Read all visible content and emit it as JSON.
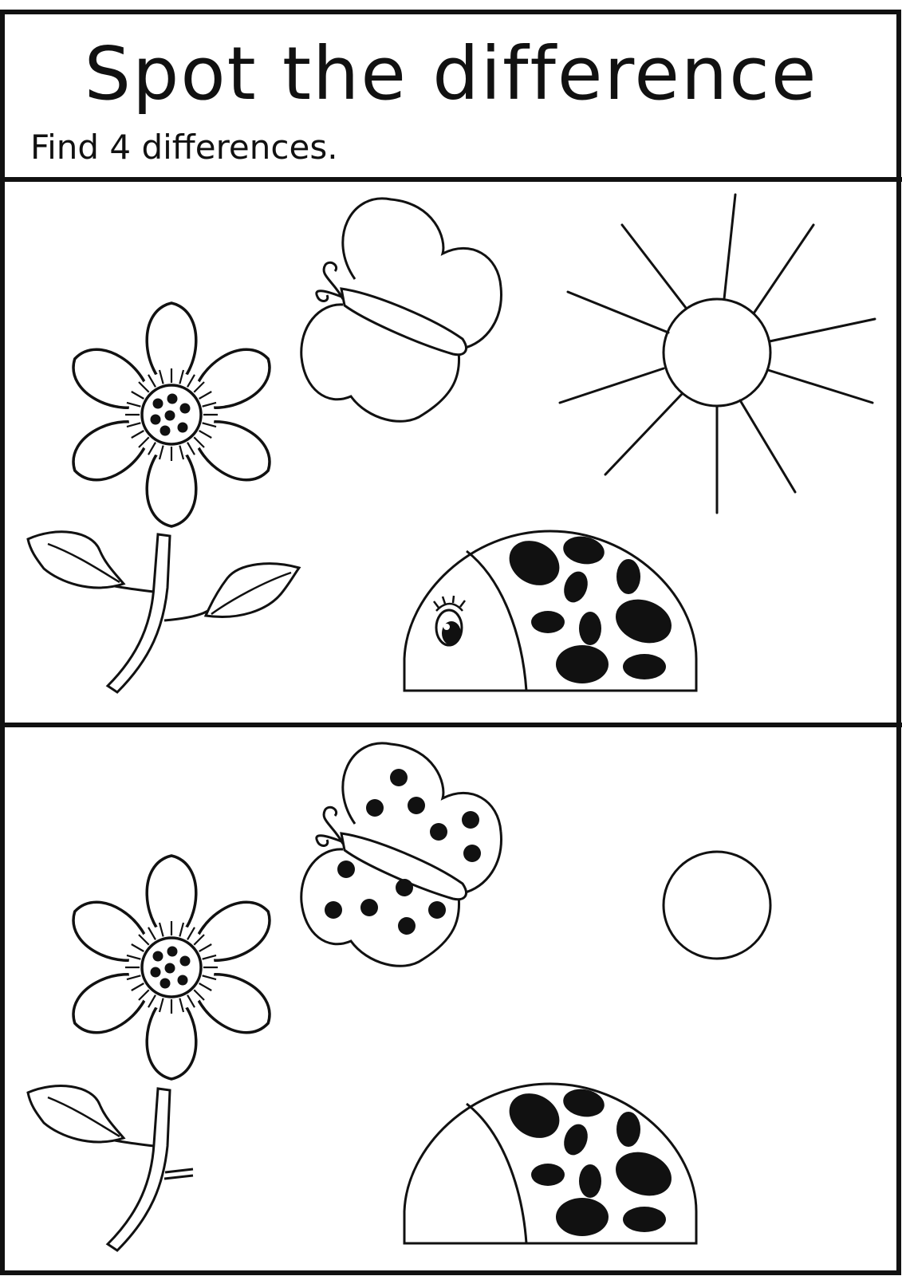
{
  "header": {
    "title": "Spot the difference",
    "instruction": "Find 4 differences."
  },
  "colors": {
    "ink": "#111111",
    "paper": "#ffffff"
  },
  "icons": [
    "flower-icon",
    "butterfly-icon",
    "sun-icon",
    "ladybug-icon"
  ]
}
